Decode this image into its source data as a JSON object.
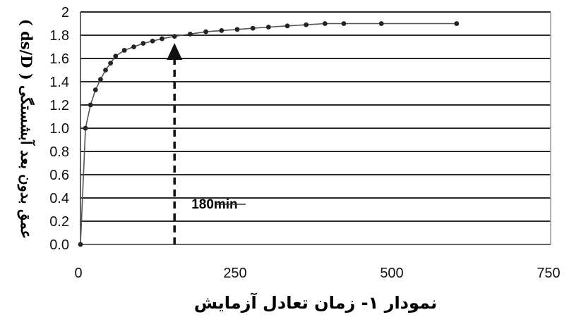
{
  "chart_data": {
    "type": "line",
    "caption": "نمودار ۱- زمان تعادل آزمایش",
    "ylabel": "عمق بدون بعد آبشستگی ( ds/D )",
    "xlabel": "",
    "x_ticks": [
      "0",
      "250",
      "500",
      "750"
    ],
    "y_ticks": [
      "0.0",
      "0.2",
      "0.4",
      "0.6",
      "0.8",
      "1.0",
      "1.2",
      "1.4",
      "1.6",
      "1.8",
      "2"
    ],
    "xlim": [
      0,
      750
    ],
    "ylim": [
      0,
      2
    ],
    "grid": "horizontal",
    "series": [
      {
        "x": [
          0,
          8,
          16,
          24,
          32,
          40,
          48,
          56,
          70,
          85,
          100,
          115,
          130,
          150,
          175,
          200,
          225,
          250,
          275,
          300,
          330,
          360,
          390,
          420,
          480,
          600
        ],
        "y": [
          0.0,
          1.0,
          1.2,
          1.33,
          1.42,
          1.5,
          1.56,
          1.62,
          1.67,
          1.7,
          1.73,
          1.75,
          1.77,
          1.79,
          1.81,
          1.83,
          1.84,
          1.85,
          1.86,
          1.87,
          1.88,
          1.89,
          1.9,
          1.9,
          1.9,
          1.9
        ]
      }
    ],
    "annotation": {
      "label": "180min",
      "x": 150
    },
    "colors": {
      "line": "#555555",
      "marker": "#222222",
      "grid": "#2a2a2a",
      "arrow": "#111111"
    }
  }
}
